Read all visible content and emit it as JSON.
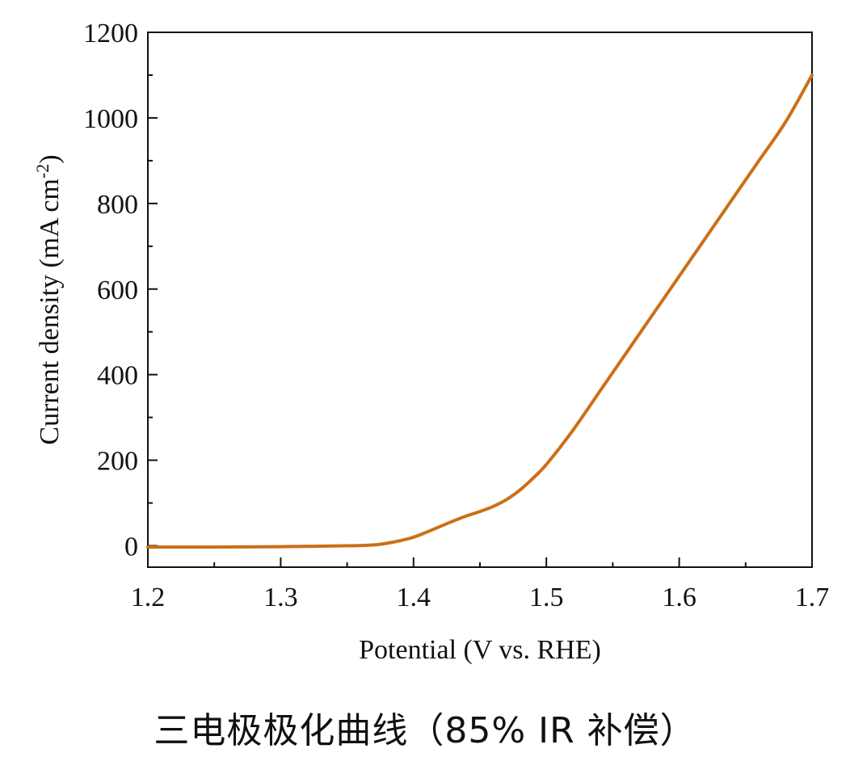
{
  "caption": "三电极极化曲线（85% IR 补偿）",
  "chart_data": {
    "type": "line",
    "title": "",
    "xlabel": "Potential (V vs. RHE)",
    "ylabel": {
      "base": "Current density (mA cm",
      "superscript": "-2",
      "close": ")"
    },
    "xlim": [
      1.2,
      1.7
    ],
    "ylim": [
      -50,
      1200
    ],
    "x_ticks": [
      "1.2",
      "1.3",
      "1.4",
      "1.5",
      "1.6",
      "1.7"
    ],
    "y_ticks": [
      "0",
      "200",
      "400",
      "600",
      "800",
      "1000",
      "1200"
    ],
    "grid": false,
    "legend": "none",
    "series": [
      {
        "color": "#cc6f17",
        "x": [
          1.2,
          1.25,
          1.3,
          1.35,
          1.37,
          1.38,
          1.39,
          1.4,
          1.41,
          1.42,
          1.43,
          1.44,
          1.45,
          1.46,
          1.47,
          1.48,
          1.49,
          1.5,
          1.52,
          1.54,
          1.56,
          1.58,
          1.6,
          1.62,
          1.64,
          1.66,
          1.68,
          1.7
        ],
        "y": [
          -3,
          -3,
          -2,
          0,
          2,
          6,
          12,
          20,
          32,
          45,
          58,
          70,
          80,
          92,
          108,
          130,
          158,
          190,
          270,
          360,
          450,
          540,
          630,
          720,
          810,
          900,
          990,
          1100
        ]
      }
    ]
  }
}
